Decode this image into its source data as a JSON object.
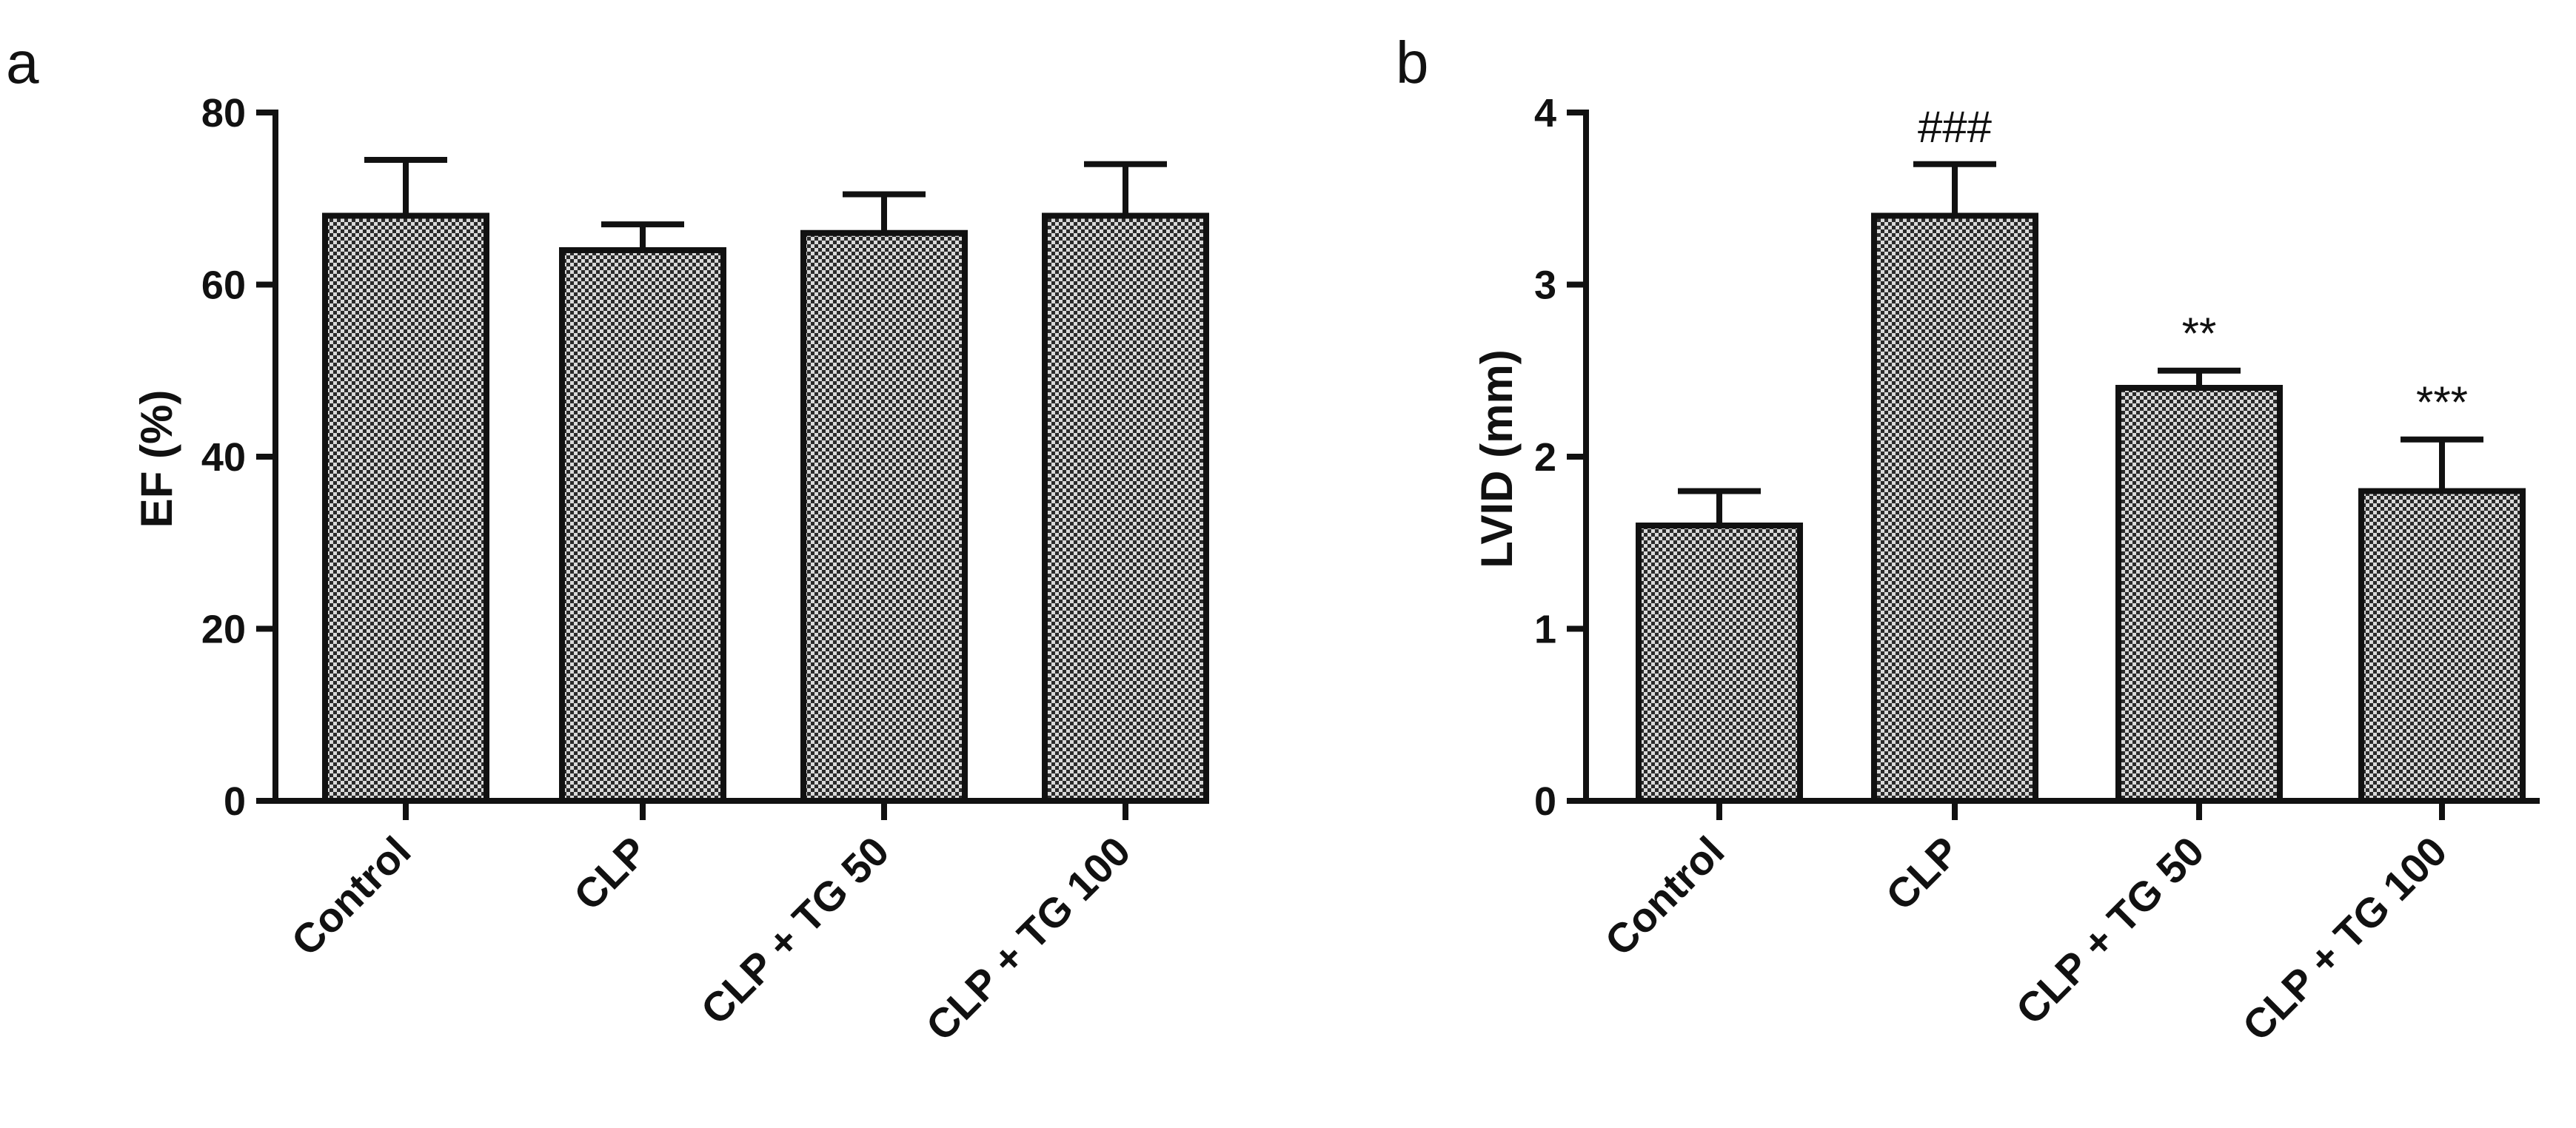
{
  "chart_data": [
    {
      "type": "bar",
      "panel_label": "a",
      "categories": [
        "Control",
        "CLP",
        "CLP + TG 50",
        "CLP + TG 100"
      ],
      "values": [
        68,
        64,
        66,
        68
      ],
      "error": [
        6.5,
        3.0,
        4.5,
        6.0
      ],
      "annotations": [
        "",
        "",
        "",
        ""
      ],
      "ylabel": "EF (%)",
      "xlabel": "",
      "ylim": [
        0,
        80
      ],
      "yticks": [
        0,
        20,
        40,
        60,
        80
      ],
      "grid": false,
      "legend": "none",
      "bar_fill": "crosshatch"
    },
    {
      "type": "bar",
      "panel_label": "b",
      "categories": [
        "Control",
        "CLP",
        "CLP + TG 50",
        "CLP + TG 100"
      ],
      "values": [
        1.6,
        3.4,
        2.4,
        1.8
      ],
      "error": [
        0.2,
        0.3,
        0.1,
        0.3
      ],
      "annotations": [
        "",
        "###",
        "**",
        "***"
      ],
      "ylabel": "LVID (mm)",
      "xlabel": "",
      "ylim": [
        0,
        4
      ],
      "yticks": [
        0,
        1,
        2,
        3,
        4
      ],
      "grid": false,
      "legend": "none",
      "bar_fill": "crosshatch"
    }
  ]
}
